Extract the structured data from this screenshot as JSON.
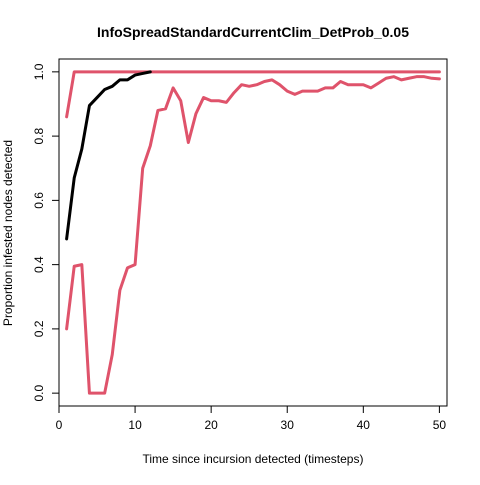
{
  "chart_data": {
    "type": "line",
    "title": "InfoSpreadStandardCurrentClim_DetProb_0.05",
    "xlabel": "Time since incursion detected (timesteps)",
    "ylabel": "Proportion infested nodes detected",
    "xlim": [
      0,
      51
    ],
    "ylim": [
      -0.04,
      1.04
    ],
    "x_ticks": [
      0,
      10,
      20,
      30,
      40,
      50
    ],
    "y_ticks": [
      0.0,
      0.2,
      0.4,
      0.6,
      0.8,
      1.0
    ],
    "x_tick_labels": [
      "0",
      "10",
      "20",
      "30",
      "40",
      "50"
    ],
    "y_tick_labels": [
      "0.0",
      "0.2",
      "0.4",
      "0.6",
      "0.8",
      "1.0"
    ],
    "grid": false,
    "series": [
      {
        "color": "#DF536B",
        "x": [
          1,
          2,
          3,
          4,
          5,
          6,
          7,
          8,
          9,
          10,
          11,
          12,
          13,
          14,
          15,
          16,
          17,
          18,
          19,
          20,
          21,
          22,
          23,
          24,
          25,
          26,
          27,
          28,
          29,
          30,
          31,
          32,
          33,
          34,
          35,
          36,
          37,
          38,
          39,
          40,
          41,
          42,
          43,
          44,
          45,
          46,
          47,
          48,
          49,
          50
        ],
        "values": [
          0.86,
          1.0,
          1.0,
          1.0,
          1.0,
          1.0,
          1.0,
          1.0,
          1.0,
          1.0,
          1.0,
          1.0,
          1.0,
          1.0,
          1.0,
          1.0,
          1.0,
          1.0,
          1.0,
          1.0,
          1.0,
          1.0,
          1.0,
          1.0,
          1.0,
          1.0,
          1.0,
          1.0,
          1.0,
          1.0,
          1.0,
          1.0,
          1.0,
          1.0,
          1.0,
          1.0,
          1.0,
          1.0,
          1.0,
          1.0,
          1.0,
          1.0,
          1.0,
          1.0,
          1.0,
          1.0,
          1.0,
          1.0,
          1.0,
          1.0
        ]
      },
      {
        "color": "#DF536B",
        "x": [
          1,
          2,
          3,
          4,
          5,
          6,
          7,
          8,
          9,
          10,
          11,
          12,
          13,
          14,
          15,
          16,
          17,
          18,
          19,
          20,
          21,
          22,
          23,
          24,
          25,
          26,
          27,
          28,
          29,
          30,
          31,
          32,
          33,
          34,
          35,
          36,
          37,
          38,
          39,
          40,
          41,
          42,
          43,
          44,
          45,
          46,
          47,
          48,
          49,
          50
        ],
        "values": [
          0.2,
          0.395,
          0.4,
          0.0,
          0.0,
          0.0,
          0.12,
          0.32,
          0.39,
          0.4,
          0.7,
          0.77,
          0.88,
          0.885,
          0.95,
          0.91,
          0.78,
          0.87,
          0.92,
          0.91,
          0.91,
          0.905,
          0.935,
          0.96,
          0.955,
          0.96,
          0.97,
          0.975,
          0.96,
          0.94,
          0.93,
          0.94,
          0.94,
          0.94,
          0.95,
          0.95,
          0.97,
          0.96,
          0.96,
          0.96,
          0.95,
          0.965,
          0.98,
          0.985,
          0.975,
          0.98,
          0.985,
          0.985,
          0.98,
          0.978
        ]
      },
      {
        "color": "#000000",
        "x": [
          1,
          2,
          3,
          4,
          5,
          6,
          7,
          8,
          9,
          10,
          11,
          12
        ],
        "values": [
          0.48,
          0.67,
          0.76,
          0.895,
          0.92,
          0.945,
          0.955,
          0.975,
          0.975,
          0.99,
          0.995,
          1.0
        ]
      }
    ]
  }
}
